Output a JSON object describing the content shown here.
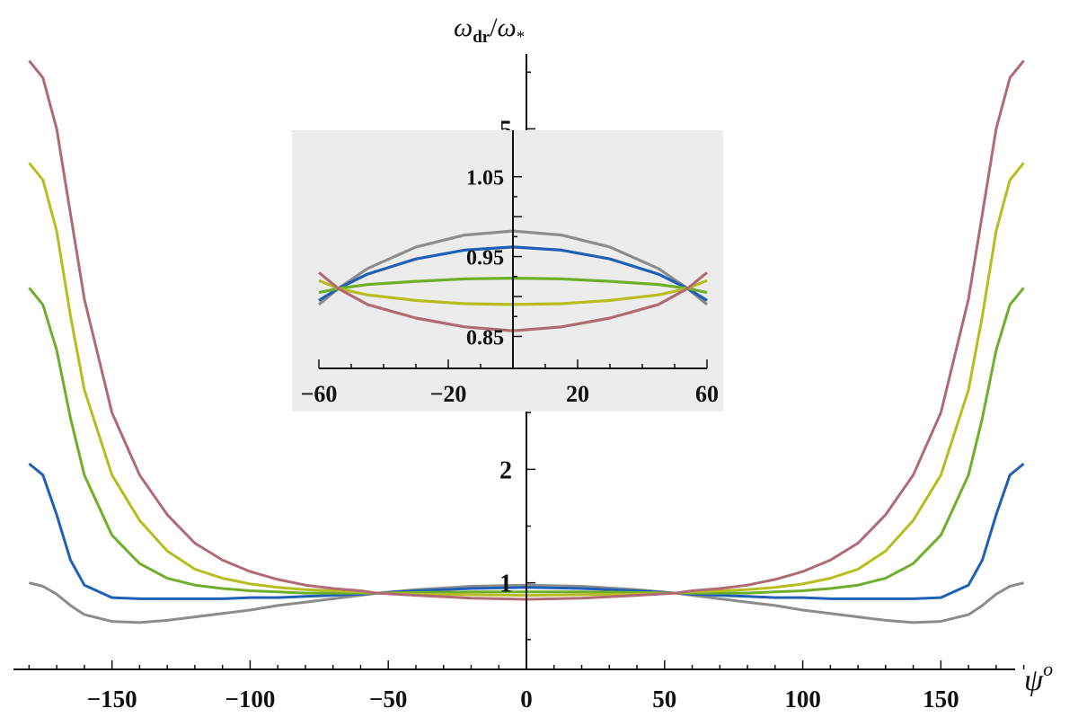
{
  "chart_data": [
    {
      "type": "line",
      "panel": "main",
      "xlabel": "ψ",
      "xlabel_sup": "o",
      "ylabel": "ω",
      "ylabel_sub": "dr",
      "ylabel_sep": "/",
      "ylabel2": "ω",
      "ylabel2_sub": "*",
      "xlim": [
        -185,
        185
      ],
      "ylim": [
        0,
        5.7
      ],
      "xticks": [
        -150,
        -100,
        -50,
        0,
        50,
        100,
        150
      ],
      "xtick_labels": [
        "−150",
        "−100",
        "−50",
        "0",
        "50",
        "100",
        "150"
      ],
      "yticks": [
        1,
        2,
        5
      ],
      "ytick_labels": [
        "1",
        "2",
        "5"
      ],
      "grid": false,
      "series": [
        {
          "color": "#8c8c8c",
          "x": [
            -180,
            -175,
            -170,
            -165,
            -160,
            -150,
            -140,
            -130,
            -120,
            -110,
            -100,
            -90,
            -80,
            -70,
            -60,
            -54,
            -40,
            -20,
            0,
            20,
            40,
            54,
            60,
            70,
            80,
            90,
            100,
            110,
            120,
            130,
            140,
            150,
            160,
            165,
            170,
            175,
            180
          ],
          "y": [
            1.0,
            0.97,
            0.9,
            0.8,
            0.72,
            0.66,
            0.65,
            0.67,
            0.7,
            0.73,
            0.76,
            0.8,
            0.83,
            0.86,
            0.89,
            0.91,
            0.94,
            0.97,
            0.98,
            0.97,
            0.94,
            0.91,
            0.89,
            0.86,
            0.83,
            0.8,
            0.76,
            0.73,
            0.7,
            0.67,
            0.65,
            0.66,
            0.72,
            0.8,
            0.9,
            0.97,
            1.0
          ]
        },
        {
          "color": "#1f5fb5",
          "x": [
            -180,
            -175,
            -170,
            -165,
            -160,
            -150,
            -140,
            -130,
            -120,
            -110,
            -100,
            -90,
            -80,
            -70,
            -60,
            -54,
            -40,
            -20,
            0,
            20,
            40,
            54,
            60,
            70,
            80,
            90,
            100,
            110,
            120,
            130,
            140,
            150,
            160,
            165,
            170,
            175,
            180
          ],
          "y": [
            2.05,
            1.95,
            1.6,
            1.2,
            0.98,
            0.87,
            0.86,
            0.86,
            0.86,
            0.86,
            0.87,
            0.87,
            0.88,
            0.89,
            0.9,
            0.91,
            0.93,
            0.95,
            0.96,
            0.95,
            0.93,
            0.91,
            0.9,
            0.89,
            0.88,
            0.87,
            0.87,
            0.86,
            0.86,
            0.86,
            0.86,
            0.87,
            0.98,
            1.2,
            1.6,
            1.95,
            2.05
          ]
        },
        {
          "color": "#6fae2a",
          "x": [
            -180,
            -175,
            -170,
            -165,
            -160,
            -150,
            -140,
            -130,
            -120,
            -110,
            -100,
            -90,
            -80,
            -70,
            -60,
            -54,
            -40,
            -20,
            0,
            20,
            40,
            54,
            60,
            70,
            80,
            90,
            100,
            110,
            120,
            130,
            140,
            150,
            160,
            165,
            170,
            175,
            180
          ],
          "y": [
            3.6,
            3.45,
            3.05,
            2.45,
            1.95,
            1.42,
            1.17,
            1.04,
            0.98,
            0.95,
            0.93,
            0.92,
            0.91,
            0.91,
            0.91,
            0.91,
            0.915,
            0.92,
            0.92,
            0.92,
            0.915,
            0.91,
            0.91,
            0.91,
            0.91,
            0.92,
            0.93,
            0.95,
            0.98,
            1.04,
            1.17,
            1.42,
            1.95,
            2.45,
            3.05,
            3.45,
            3.6
          ]
        },
        {
          "color": "#b7bd1e",
          "x": [
            -180,
            -175,
            -170,
            -165,
            -160,
            -150,
            -140,
            -130,
            -120,
            -110,
            -100,
            -90,
            -80,
            -70,
            -60,
            -54,
            -40,
            -20,
            0,
            20,
            40,
            54,
            60,
            70,
            80,
            90,
            100,
            110,
            120,
            130,
            140,
            150,
            160,
            165,
            170,
            175,
            180
          ],
          "y": [
            4.7,
            4.55,
            4.1,
            3.35,
            2.7,
            1.95,
            1.55,
            1.28,
            1.12,
            1.04,
            0.99,
            0.96,
            0.94,
            0.93,
            0.92,
            0.91,
            0.9,
            0.895,
            0.89,
            0.895,
            0.9,
            0.91,
            0.92,
            0.93,
            0.94,
            0.96,
            0.99,
            1.04,
            1.12,
            1.28,
            1.55,
            1.95,
            2.7,
            3.35,
            4.1,
            4.55,
            4.7
          ]
        },
        {
          "color": "#b06a74",
          "x": [
            -180,
            -175,
            -170,
            -165,
            -160,
            -150,
            -140,
            -130,
            -120,
            -110,
            -100,
            -90,
            -80,
            -70,
            -60,
            -54,
            -40,
            -20,
            0,
            20,
            40,
            54,
            60,
            70,
            80,
            90,
            100,
            110,
            120,
            130,
            140,
            150,
            160,
            165,
            170,
            175,
            180
          ],
          "y": [
            5.6,
            5.45,
            5.0,
            4.25,
            3.5,
            2.5,
            1.95,
            1.6,
            1.35,
            1.2,
            1.1,
            1.03,
            0.98,
            0.95,
            0.93,
            0.91,
            0.89,
            0.865,
            0.855,
            0.865,
            0.89,
            0.91,
            0.93,
            0.95,
            0.98,
            1.03,
            1.1,
            1.2,
            1.35,
            1.6,
            1.95,
            2.5,
            3.5,
            4.25,
            5.0,
            5.45,
            5.6
          ]
        }
      ]
    },
    {
      "type": "line",
      "panel": "inset",
      "xlim": [
        -60,
        60
      ],
      "ylim": [
        0.81,
        1.08
      ],
      "xticks": [
        -60,
        -20,
        20,
        60
      ],
      "xtick_labels": [
        "−60",
        "−20",
        "20",
        "60"
      ],
      "yticks": [
        0.85,
        0.95,
        1.05
      ],
      "ytick_labels": [
        "0.85",
        "0.95",
        "1.05"
      ],
      "background": "#ececec",
      "grid": false,
      "series": [
        {
          "color": "#8c8c8c",
          "x": [
            -60,
            -54,
            -45,
            -30,
            -15,
            0,
            15,
            30,
            45,
            54,
            60
          ],
          "y": [
            0.89,
            0.91,
            0.935,
            0.962,
            0.977,
            0.982,
            0.977,
            0.962,
            0.935,
            0.91,
            0.89
          ]
        },
        {
          "color": "#1f5fb5",
          "x": [
            -60,
            -54,
            -45,
            -30,
            -15,
            0,
            15,
            30,
            45,
            54,
            60
          ],
          "y": [
            0.895,
            0.91,
            0.928,
            0.947,
            0.958,
            0.962,
            0.958,
            0.947,
            0.928,
            0.91,
            0.895
          ]
        },
        {
          "color": "#6fae2a",
          "x": [
            -60,
            -54,
            -45,
            -30,
            -15,
            0,
            15,
            30,
            45,
            54,
            60
          ],
          "y": [
            0.905,
            0.91,
            0.915,
            0.919,
            0.922,
            0.923,
            0.922,
            0.919,
            0.915,
            0.91,
            0.905
          ]
        },
        {
          "color": "#b7bd1e",
          "x": [
            -60,
            -54,
            -45,
            -30,
            -15,
            0,
            15,
            30,
            45,
            54,
            60
          ],
          "y": [
            0.92,
            0.91,
            0.902,
            0.895,
            0.891,
            0.89,
            0.891,
            0.895,
            0.902,
            0.91,
            0.92
          ]
        },
        {
          "color": "#b06a74",
          "x": [
            -60,
            -54,
            -45,
            -30,
            -15,
            0,
            15,
            30,
            45,
            54,
            60
          ],
          "y": [
            0.93,
            0.91,
            0.89,
            0.873,
            0.862,
            0.857,
            0.862,
            0.873,
            0.89,
            0.91,
            0.93
          ]
        }
      ]
    }
  ]
}
